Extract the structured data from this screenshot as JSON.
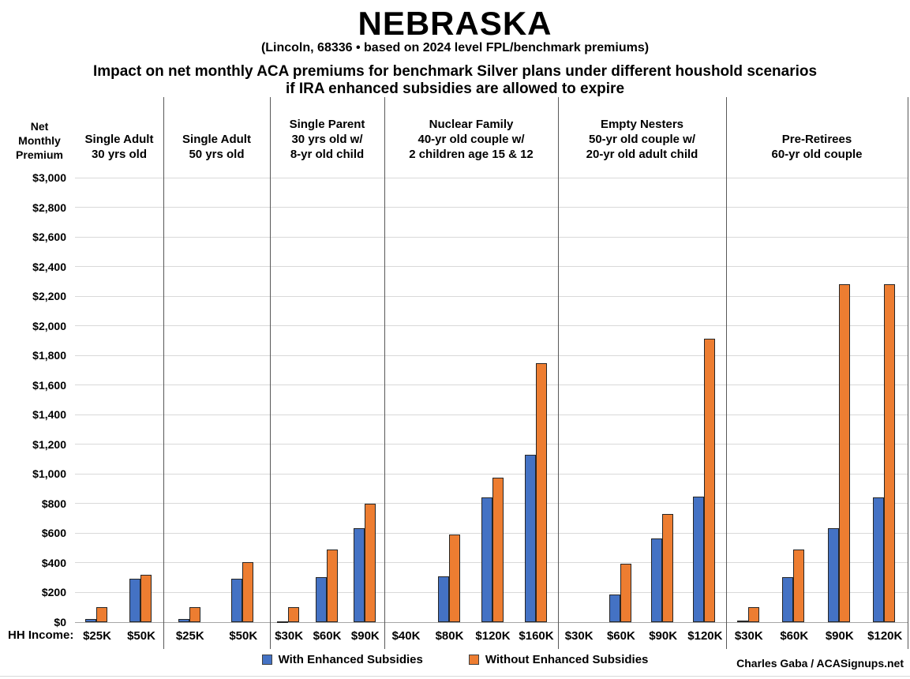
{
  "header": {
    "title": "NEBRASKA",
    "subtitle": "(Lincoln, 68336 • based on 2024 level FPL/benchmark premiums)",
    "heading_line1": "Impact on net monthly ACA premiums for benchmark Silver plans under different houshold scenarios",
    "heading_line2": "if IRA enhanced subsidies are allowed to expire"
  },
  "axis": {
    "y_title_lines": [
      "Net",
      "Monthly",
      "Premium"
    ],
    "x_title": "HH Income:"
  },
  "legend": {
    "with_label": "With Enhanced Subsidies",
    "without_label": "Without Enhanced Subsidies"
  },
  "credit": "Charles Gaba / ACASignups.net",
  "colors": {
    "series_with": "#4472C4",
    "series_without": "#ED7D31",
    "gridline": "#D9D9D9",
    "separator": "#595959",
    "axis_line": "#A6A6A6"
  },
  "chart_data": {
    "type": "bar",
    "title": "Impact on net monthly ACA premiums for benchmark Silver plans under different houshold scenarios if IRA enhanced subsidies are allowed to expire",
    "ylabel": "Net Monthly Premium",
    "xlabel": "HH Income",
    "ylim": [
      0,
      3000
    ],
    "ytick_interval": 200,
    "ytick_labels": [
      "$0",
      "$200",
      "$400",
      "$600",
      "$800",
      "$1,000",
      "$1,200",
      "$1,400",
      "$1,600",
      "$1,800",
      "$2,000",
      "$2,200",
      "$2,400",
      "$2,600",
      "$2,800",
      "$3,000"
    ],
    "grid": true,
    "legend_position": "bottom",
    "series_names": [
      "With Enhanced Subsidies",
      "Without Enhanced Subsidies"
    ],
    "groups": [
      {
        "label_lines": [
          "Single Adult",
          "30 yrs old"
        ],
        "categories": [
          "$25K",
          "$50K"
        ],
        "series": [
          {
            "name": "With Enhanced Subsidies",
            "values": [
              20,
              295
            ]
          },
          {
            "name": "Without Enhanced Subsidies",
            "values": [
              100,
              320
            ]
          }
        ]
      },
      {
        "label_lines": [
          "Single Adult",
          "50 yrs old"
        ],
        "categories": [
          "$25K",
          "$50K"
        ],
        "series": [
          {
            "name": "With Enhanced Subsidies",
            "values": [
              20,
              295
            ]
          },
          {
            "name": "Without Enhanced Subsidies",
            "values": [
              100,
              405
            ]
          }
        ]
      },
      {
        "label_lines": [
          "Single Parent",
          "30 yrs old w/",
          "8-yr old child"
        ],
        "categories": [
          "$30K",
          "$60K",
          "$90K"
        ],
        "series": [
          {
            "name": "With Enhanced Subsidies",
            "values": [
              5,
              305,
              635
            ]
          },
          {
            "name": "Without Enhanced Subsidies",
            "values": [
              100,
              490,
              800
            ]
          }
        ]
      },
      {
        "label_lines": [
          "Nuclear Family",
          "40-yr old couple w/",
          "2 children age 15 & 12"
        ],
        "categories": [
          "$40K",
          "$80K",
          "$120K",
          "$160K"
        ],
        "series": [
          {
            "name": "With Enhanced Subsidies",
            "values": [
              0,
              310,
              845,
              1130
            ]
          },
          {
            "name": "Without Enhanced Subsidies",
            "values": [
              0,
              590,
              975,
              1750
            ]
          }
        ]
      },
      {
        "label_lines": [
          "Empty Nesters",
          "50-yr old couple w/",
          "20-yr old adult child"
        ],
        "categories": [
          "$30K",
          "$60K",
          "$90K",
          "$120K"
        ],
        "series": [
          {
            "name": "With Enhanced Subsidies",
            "values": [
              0,
              185,
              565,
              850
            ]
          },
          {
            "name": "Without Enhanced Subsidies",
            "values": [
              0,
              395,
              730,
              1915
            ]
          }
        ]
      },
      {
        "label_lines": [
          "Pre-Retirees",
          "60-yr old couple"
        ],
        "categories": [
          "$30K",
          "$60K",
          "$90K",
          "$120K"
        ],
        "series": [
          {
            "name": "With Enhanced Subsidies",
            "values": [
              10,
              305,
              635,
              845
            ]
          },
          {
            "name": "Without Enhanced Subsidies",
            "values": [
              100,
              490,
              2285,
              2285
            ]
          }
        ]
      }
    ]
  }
}
